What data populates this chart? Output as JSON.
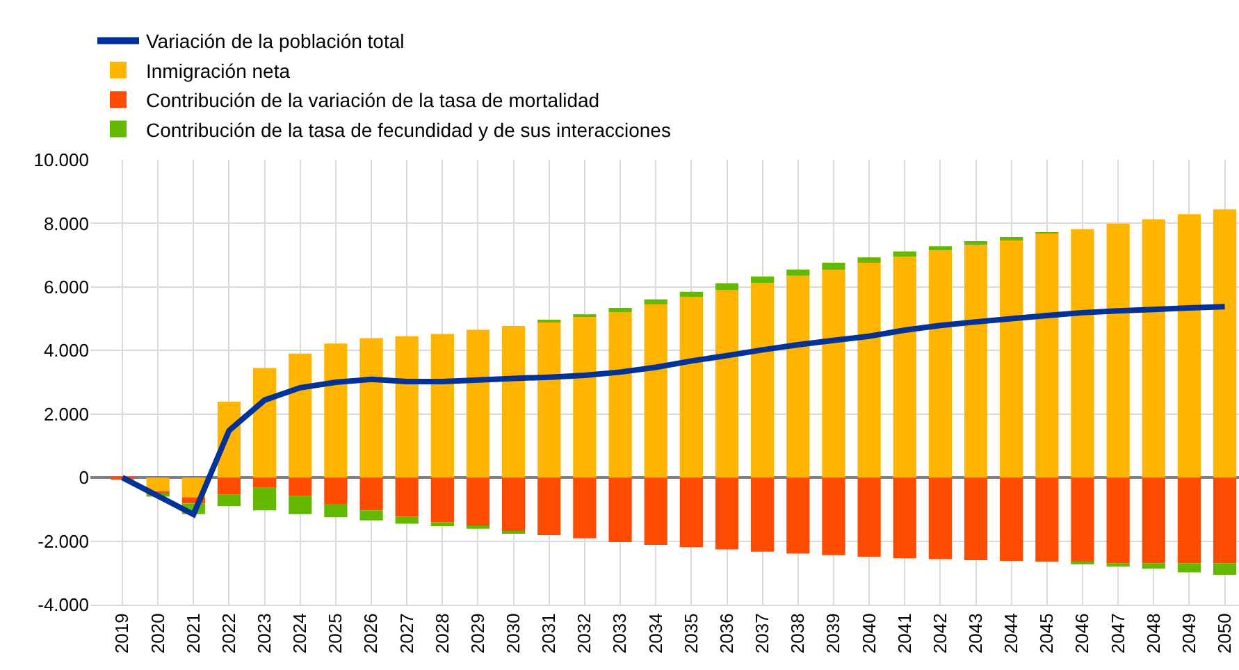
{
  "chart_data": {
    "type": "bar",
    "stacked": true,
    "grid": true,
    "legend": "top left",
    "marker": "none",
    "categories": [
      "2019",
      "2020",
      "2021",
      "2022",
      "2023",
      "2024",
      "2025",
      "2026",
      "2027",
      "2028",
      "2029",
      "2030",
      "2031",
      "2032",
      "2033",
      "2034",
      "2035",
      "2036",
      "2037",
      "2038",
      "2039",
      "2040",
      "2041",
      "2042",
      "2043",
      "2044",
      "2045",
      "2046",
      "2047",
      "2048",
      "2049",
      "2050"
    ],
    "ylim": [
      -4000,
      10000
    ],
    "yticks": [
      {
        "value": -4000,
        "label": "-4.000"
      },
      {
        "value": -2000,
        "label": "-2.000"
      },
      0,
      {
        "value": 2000,
        "label": "2.000"
      },
      {
        "value": 4000,
        "label": "4.000"
      },
      {
        "value": 6000,
        "label": "6.000"
      },
      {
        "value": 8000,
        "label": "8.000"
      },
      {
        "value": 10000,
        "label": "10.000"
      }
    ],
    "series": [
      {
        "name": "Variación de la población total",
        "type": "line",
        "line_style": "solid",
        "color": "#003299",
        "values": [
          0,
          -580,
          -1160,
          1480,
          2440,
          2830,
          3000,
          3090,
          3020,
          3020,
          3070,
          3120,
          3160,
          3220,
          3320,
          3470,
          3670,
          3840,
          4020,
          4180,
          4320,
          4450,
          4640,
          4790,
          4900,
          5000,
          5100,
          5190,
          5250,
          5290,
          5340,
          5380
        ]
      },
      {
        "name": "Inmigración neta",
        "color": "#ffb400",
        "values": [
          null,
          -430,
          -620,
          2390,
          3450,
          3900,
          4220,
          4390,
          4450,
          4520,
          4650,
          4770,
          4920,
          5050,
          5210,
          5450,
          5680,
          5900,
          6130,
          6350,
          6540,
          6760,
          6950,
          7150,
          7320,
          7500,
          7690,
          7820,
          7990,
          8130,
          8290,
          8440
        ]
      },
      {
        "name": "Contribución de la variación de la tasa de mortalidad",
        "color": "#ff4b00",
        "values": [
          -70,
          -100,
          -200,
          -540,
          -320,
          -580,
          -830,
          -1030,
          -1230,
          -1410,
          -1540,
          -1700,
          -1810,
          -1910,
          -2030,
          -2120,
          -2190,
          -2260,
          -2330,
          -2390,
          -2440,
          -2490,
          -2540,
          -2570,
          -2600,
          -2620,
          -2650,
          -2680,
          -2700,
          -2700,
          -2700,
          -2700
        ]
      },
      {
        "name": "Contribución de la tasa de fecundidad y de sus interacciones",
        "color": "#65b800",
        "values": [
          null,
          -70,
          -330,
          -360,
          -710,
          -570,
          -420,
          -320,
          -220,
          -120,
          -70,
          -30,
          40,
          90,
          130,
          160,
          170,
          220,
          200,
          200,
          220,
          170,
          170,
          130,
          120,
          70,
          30,
          -30,
          -100,
          -170,
          -280,
          -360
        ]
      }
    ]
  }
}
